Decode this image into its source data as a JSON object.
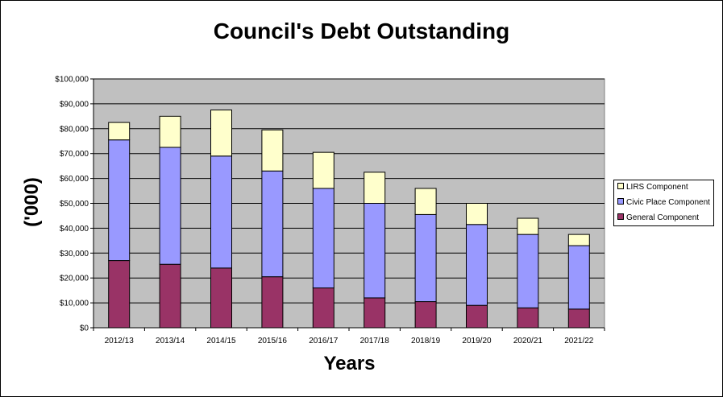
{
  "chart_data": {
    "type": "bar",
    "stacked": true,
    "title": "Council's Debt Outstanding",
    "xlabel": "Years",
    "ylabel": "('000)",
    "categories": [
      "2012/13",
      "2013/14",
      "2014/15",
      "2015/16",
      "2016/17",
      "2017/18",
      "2018/19",
      "2019/20",
      "2020/21",
      "2021/22"
    ],
    "ylim": [
      0,
      100000
    ],
    "yticks": [
      0,
      10000,
      20000,
      30000,
      40000,
      50000,
      60000,
      70000,
      80000,
      90000,
      100000
    ],
    "ytick_labels": [
      "$0",
      "$10,000",
      "$20,000",
      "$30,000",
      "$40,000",
      "$50,000",
      "$60,000",
      "$70,000",
      "$80,000",
      "$90,000",
      "$100,000"
    ],
    "grid": true,
    "legend_position": "right",
    "series": [
      {
        "name": "General Component",
        "color": "#993366",
        "values": [
          27000,
          25500,
          24000,
          20500,
          16000,
          12000,
          10500,
          9000,
          8000,
          7500
        ]
      },
      {
        "name": "Civic Place Component",
        "color": "#9999ff",
        "values": [
          48500,
          47000,
          45000,
          42500,
          40000,
          38000,
          35000,
          32500,
          29500,
          25500
        ]
      },
      {
        "name": "LIRS Component",
        "color": "#ffffcc",
        "values": [
          7000,
          12500,
          18500,
          16500,
          14500,
          12500,
          10500,
          8500,
          6500,
          4500
        ]
      }
    ],
    "legend_order": [
      "LIRS Component",
      "Civic Place Component",
      "General Component"
    ],
    "plot_background": "#c0c0c0"
  }
}
